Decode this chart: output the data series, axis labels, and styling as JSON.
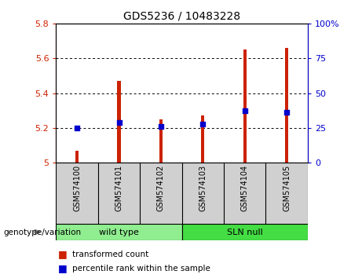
{
  "title": "GDS5236 / 10483228",
  "samples": [
    "GSM574100",
    "GSM574101",
    "GSM574102",
    "GSM574103",
    "GSM574104",
    "GSM574105"
  ],
  "red_values": [
    5.07,
    5.47,
    5.25,
    5.27,
    5.65,
    5.66
  ],
  "blue_values": [
    5.2,
    5.23,
    5.21,
    5.22,
    5.3,
    5.29
  ],
  "ylim_left": [
    5.0,
    5.8
  ],
  "ylim_right": [
    0,
    100
  ],
  "left_ticks": [
    5.0,
    5.2,
    5.4,
    5.6,
    5.8
  ],
  "right_ticks": [
    0,
    25,
    50,
    75,
    100
  ],
  "left_tick_labels": [
    "5",
    "5.2",
    "5.4",
    "5.6",
    "5.8"
  ],
  "right_tick_labels": [
    "0",
    "25",
    "50",
    "75",
    "100%"
  ],
  "groups": [
    {
      "label": "wild type",
      "samples": [
        0,
        1,
        2
      ],
      "color": "#90EE90"
    },
    {
      "label": "SLN null",
      "samples": [
        3,
        4,
        5
      ],
      "color": "#44DD44"
    }
  ],
  "group_label_prefix": "genotype/variation",
  "bar_color": "#CC2200",
  "dot_color": "#0000CC",
  "bar_width": 0.08,
  "dot_size": 18,
  "legend_red_label": "transformed count",
  "legend_blue_label": "percentile rank within the sample"
}
